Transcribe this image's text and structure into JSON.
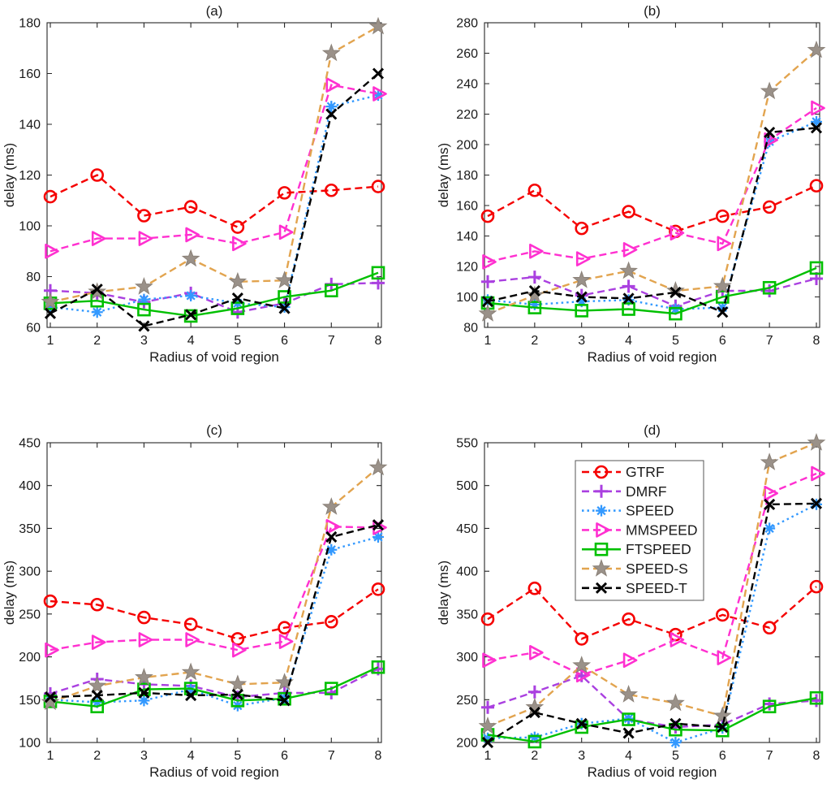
{
  "figure": {
    "background": "#ffffff",
    "xlabel": "Radius of void region",
    "ylabel": "delay (ms)",
    "x_ticks": [
      "1",
      "2",
      "3",
      "4",
      "5",
      "6",
      "7",
      "8"
    ],
    "axis_color": "#262626",
    "series_styles": [
      {
        "name": "GTRF",
        "color": "#f50000",
        "dash": "dashed",
        "marker": "circle"
      },
      {
        "name": "DMRF",
        "color": "#aa40e0",
        "dash": "dashed",
        "marker": "plus"
      },
      {
        "name": "SPEED",
        "color": "#3399ff",
        "dash": "dotted",
        "marker": "asterisk"
      },
      {
        "name": "MMSPEED",
        "color": "#ff30d0",
        "dash": "dashed",
        "marker": "triangle-right"
      },
      {
        "name": "FTSPEED",
        "color": "#00c000",
        "dash": "solid",
        "marker": "square"
      },
      {
        "name": "SPEED-S",
        "color": "#e2a44f",
        "dash": "dashed",
        "marker": "star",
        "marker_fill": "#9a9189",
        "marker_edge": "#8a8178"
      },
      {
        "name": "SPEED-T",
        "color": "#000000",
        "dash": "dashed",
        "marker": "x"
      }
    ],
    "legend": {
      "shown_on_chart": "d",
      "entries": [
        "GTRF",
        "DMRF",
        "SPEED",
        "MMSPEED",
        "FTSPEED",
        "SPEED-S",
        "SPEED-T"
      ]
    }
  },
  "chart_data": [
    {
      "id": "a",
      "type": "line",
      "title": "(a)",
      "xlabel": "Radius of void region",
      "ylabel": "delay (ms)",
      "x": [
        1,
        2,
        3,
        4,
        5,
        6,
        7,
        8
      ],
      "xlim": [
        1,
        8
      ],
      "ylim": [
        60,
        180
      ],
      "yticks": [
        60,
        80,
        100,
        120,
        140,
        160,
        180
      ],
      "grid": false,
      "series": [
        {
          "name": "GTRF",
          "values": [
            111.5,
            120,
            104,
            107.5,
            99.5,
            113,
            114,
            115.5
          ]
        },
        {
          "name": "DMRF",
          "values": [
            74.5,
            73.5,
            70,
            73.5,
            66,
            69.5,
            77,
            77.5
          ]
        },
        {
          "name": "SPEED",
          "values": [
            68,
            66,
            71,
            72.5,
            69.5,
            68,
            147,
            151.5
          ]
        },
        {
          "name": "MMSPEED",
          "values": [
            90,
            95,
            95,
            96.5,
            93,
            97.5,
            155.5,
            152
          ]
        },
        {
          "name": "FTSPEED",
          "values": [
            69.5,
            70.5,
            67,
            64.5,
            67.5,
            72,
            74.5,
            81.5
          ]
        },
        {
          "name": "SPEED-S",
          "values": [
            70,
            74,
            76,
            87,
            78,
            78.5,
            168,
            178.5
          ]
        },
        {
          "name": "SPEED-T",
          "values": [
            65.5,
            75,
            60.5,
            65,
            71.5,
            67.5,
            144,
            160
          ]
        }
      ]
    },
    {
      "id": "b",
      "type": "line",
      "title": "(b)",
      "xlabel": "Radius of void region",
      "ylabel": "delay (ms)",
      "x": [
        1,
        2,
        3,
        4,
        5,
        6,
        7,
        8
      ],
      "xlim": [
        1,
        8
      ],
      "ylim": [
        80,
        280
      ],
      "yticks": [
        80,
        100,
        120,
        140,
        160,
        180,
        200,
        220,
        240,
        260,
        280
      ],
      "grid": false,
      "series": [
        {
          "name": "GTRF",
          "values": [
            153,
            170,
            145,
            156,
            143,
            153,
            159,
            173
          ]
        },
        {
          "name": "DMRF",
          "values": [
            110,
            113,
            101,
            107,
            94,
            104,
            104,
            112
          ]
        },
        {
          "name": "SPEED",
          "values": [
            98,
            95,
            97,
            98,
            92,
            93,
            202,
            215
          ]
        },
        {
          "name": "MMSPEED",
          "values": [
            123,
            130,
            125,
            131,
            142,
            135,
            203,
            224
          ]
        },
        {
          "name": "FTSPEED",
          "values": [
            96,
            93,
            91,
            92,
            89,
            100,
            106,
            119
          ]
        },
        {
          "name": "SPEED-S",
          "values": [
            89,
            101,
            111,
            117,
            104,
            107,
            235,
            262
          ]
        },
        {
          "name": "SPEED-T",
          "values": [
            97,
            104,
            100,
            99,
            103,
            90,
            208,
            211
          ]
        }
      ]
    },
    {
      "id": "c",
      "type": "line",
      "title": "(c)",
      "xlabel": "Radius of void region",
      "ylabel": "delay (ms)",
      "x": [
        1,
        2,
        3,
        4,
        5,
        6,
        7,
        8
      ],
      "xlim": [
        1,
        8
      ],
      "ylim": [
        100,
        450
      ],
      "yticks": [
        100,
        150,
        200,
        250,
        300,
        350,
        400,
        450
      ],
      "grid": false,
      "series": [
        {
          "name": "GTRF",
          "values": [
            265,
            261,
            246,
            238,
            221,
            234,
            241,
            279
          ]
        },
        {
          "name": "DMRF",
          "values": [
            157,
            174,
            168,
            166,
            153,
            158,
            158,
            186
          ]
        },
        {
          "name": "SPEED",
          "values": [
            150,
            147,
            149,
            162,
            143,
            152,
            325,
            340
          ]
        },
        {
          "name": "MMSPEED",
          "values": [
            208,
            217,
            220,
            220,
            208,
            218,
            352,
            351
          ]
        },
        {
          "name": "FTSPEED",
          "values": [
            148,
            142,
            162,
            163,
            149,
            151,
            163,
            188
          ]
        },
        {
          "name": "SPEED-S",
          "values": [
            147,
            166,
            176,
            182,
            168,
            170,
            375,
            421
          ]
        },
        {
          "name": "SPEED-T",
          "values": [
            153,
            155,
            158,
            155,
            156,
            149,
            340,
            354
          ]
        }
      ]
    },
    {
      "id": "d",
      "type": "line",
      "title": "(d)",
      "xlabel": "Radius of void region",
      "ylabel": "delay (ms)",
      "x": [
        1,
        2,
        3,
        4,
        5,
        6,
        7,
        8
      ],
      "xlim": [
        1,
        8
      ],
      "ylim": [
        200,
        550
      ],
      "yticks": [
        200,
        250,
        300,
        350,
        400,
        450,
        500,
        550
      ],
      "grid": false,
      "series": [
        {
          "name": "GTRF",
          "values": [
            344,
            380,
            321,
            344,
            326,
            349,
            334,
            382
          ]
        },
        {
          "name": "DMRF",
          "values": [
            241,
            259,
            278,
            227,
            218,
            221,
            245,
            249
          ]
        },
        {
          "name": "SPEED",
          "values": [
            205,
            206,
            222,
            228,
            200,
            217,
            450,
            478
          ]
        },
        {
          "name": "MMSPEED",
          "values": [
            296,
            305,
            279,
            296,
            320,
            299,
            491,
            514
          ]
        },
        {
          "name": "FTSPEED",
          "values": [
            209,
            201,
            218,
            227,
            215,
            214,
            242,
            252
          ]
        },
        {
          "name": "SPEED-S",
          "values": [
            219,
            241,
            290,
            256,
            246,
            231,
            527,
            550
          ]
        },
        {
          "name": "SPEED-T",
          "values": [
            200,
            235,
            222,
            211,
            222,
            218,
            478,
            479
          ]
        }
      ]
    }
  ]
}
